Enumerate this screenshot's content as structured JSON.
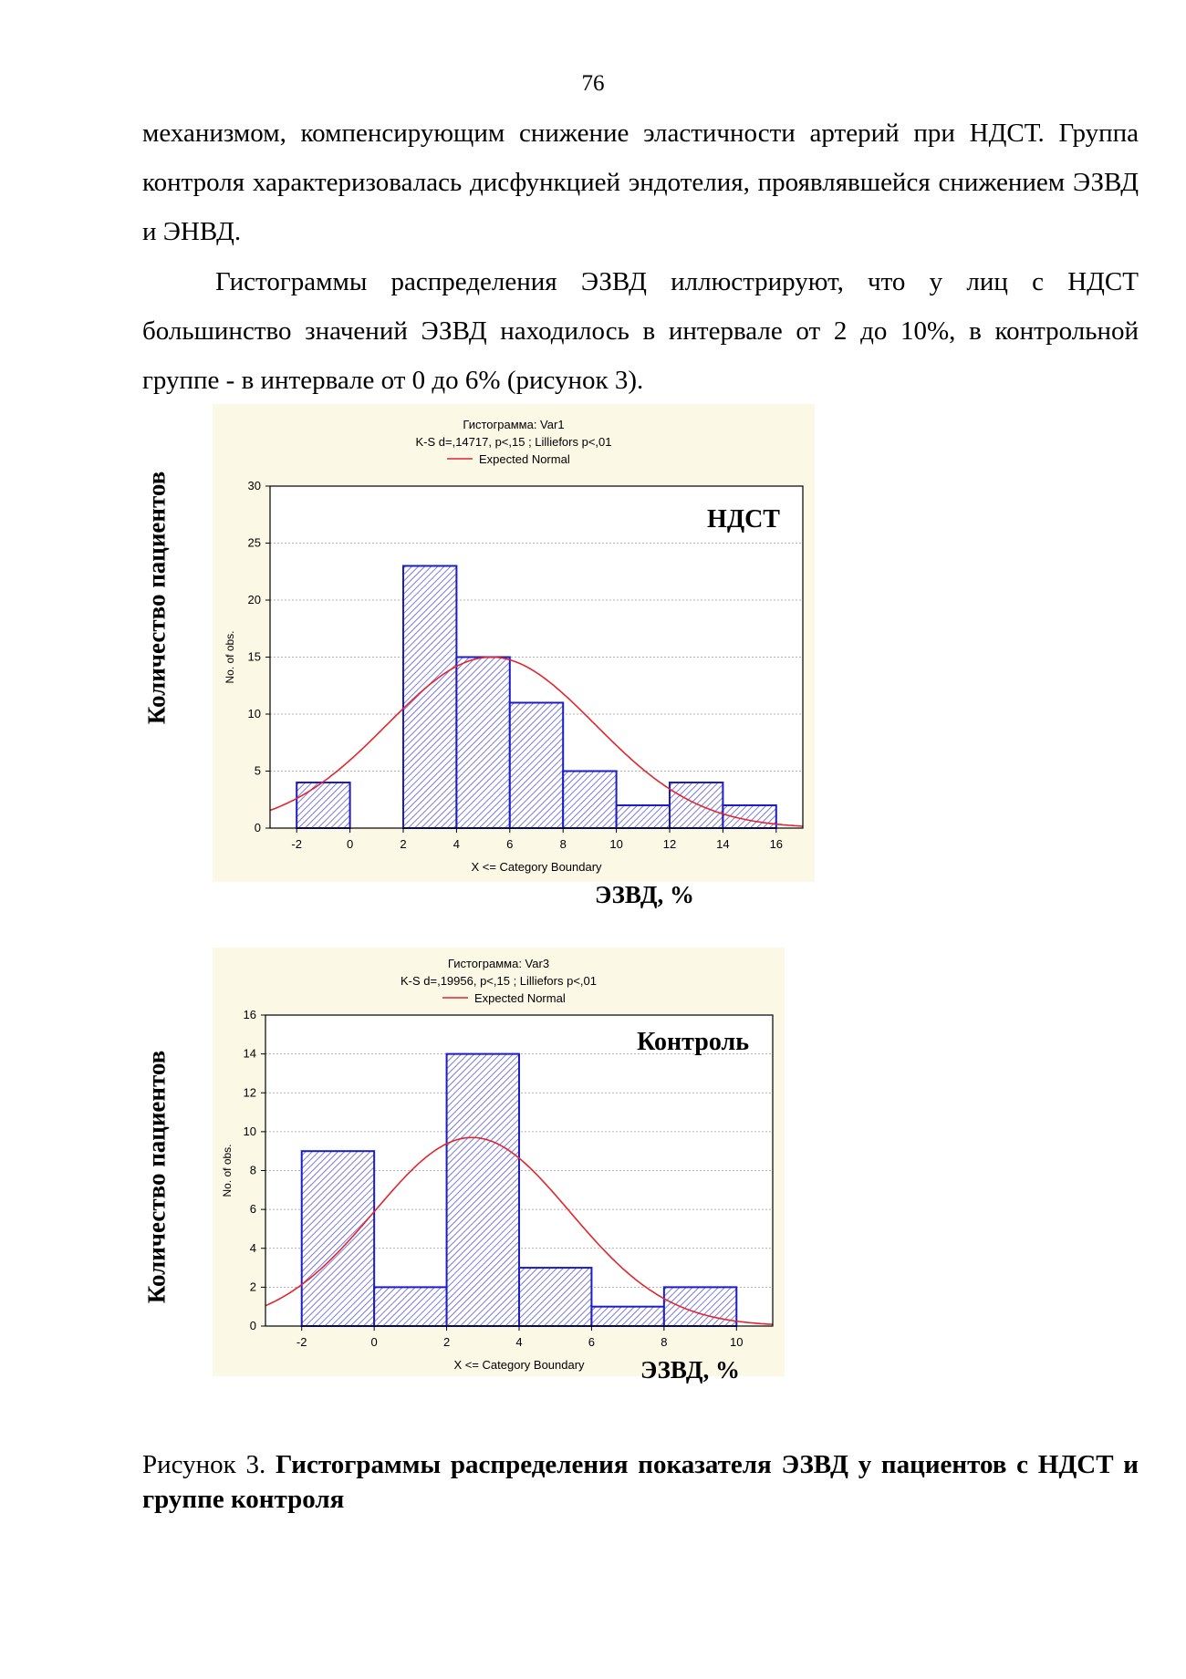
{
  "page_number": "76",
  "paragraph1": "механизмом, компенсирующим снижение эластичности артерий при НДСТ. Группа контроля характеризовалась дисфункцией эндотелия, проявлявшейся снижением ЭЗВД и ЭНВД.",
  "paragraph2": "Гистограммы распределения ЭЗВД иллюстрируют, что у лиц с НДСТ большинство значений ЭЗВД находилось в интервале от 2 до 10%, в контрольной группе - в интервале от 0 до 6% (рисунок 3).",
  "outer_y_label": "Количество пациентов",
  "outer_x_label": "ЭЗВД, %",
  "caption": {
    "prefix": "Рисунок 3. ",
    "bold": "Гистограммы распределения показателя ЭЗВД у пациентов с НДСТ и группе контроля"
  },
  "colors": {
    "plot_bg": "#FBF8E6",
    "bar_stroke": "#1C1CC8",
    "hatch": "#5A5AD2",
    "curve": "#E0262E"
  },
  "chart_data": [
    {
      "type": "bar",
      "title": "Гистограмма: Var1",
      "subtitle": "K-S d=,14717, p<,15 ; Lilliefors p<,01",
      "legend": "Expected Normal",
      "inset_label": "НДСТ",
      "xlabel": "X <= Category Boundary",
      "ylabel": "No. of obs.",
      "xlim": [
        -3,
        17
      ],
      "ylim": [
        0,
        30
      ],
      "x_ticks": [
        -2,
        0,
        2,
        4,
        6,
        8,
        10,
        12,
        14,
        16
      ],
      "y_ticks": [
        0,
        5,
        10,
        15,
        20,
        25,
        30
      ],
      "bin_edges": [
        -2,
        0,
        2,
        4,
        6,
        8,
        10,
        12,
        14,
        16
      ],
      "values": [
        4,
        0,
        23,
        15,
        11,
        5,
        2,
        4,
        2
      ],
      "normal_curve": {
        "mean": 5.3,
        "sd": 3.9,
        "peak": 15
      },
      "grid": true
    },
    {
      "type": "bar",
      "title": "Гистограмма: Var3",
      "subtitle": "K-S d=,19956, p<,15 ; Lilliefors p<,01",
      "legend": "Expected Normal",
      "inset_label": "Контроль",
      "xlabel": "X <= Category Boundary",
      "ylabel": "No. of obs.",
      "xlim": [
        -3,
        11
      ],
      "ylim": [
        0,
        16
      ],
      "x_ticks": [
        -2,
        0,
        2,
        4,
        6,
        8,
        10
      ],
      "y_ticks": [
        0,
        2,
        4,
        6,
        8,
        10,
        12,
        14,
        16
      ],
      "bin_edges": [
        -2,
        0,
        2,
        4,
        6,
        8,
        10
      ],
      "values": [
        9,
        2,
        14,
        3,
        1,
        2
      ],
      "normal_curve": {
        "mean": 2.7,
        "sd": 2.7,
        "peak": 9.7
      },
      "grid": true
    }
  ]
}
